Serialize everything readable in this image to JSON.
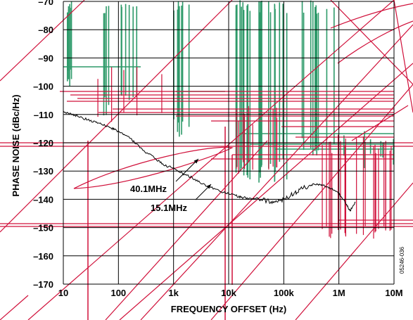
{
  "chart_data": {
    "type": "line",
    "title": "",
    "xlabel": "FREQUENCY OFFSET (Hz)",
    "ylabel": "PHASE NOISE (dBc/Hz)",
    "x_scale": "log",
    "xlim": [
      10,
      10000000
    ],
    "ylim": [
      -170,
      -70
    ],
    "x_ticks": [
      {
        "value": 10,
        "label": "10"
      },
      {
        "value": 100,
        "label": "100"
      },
      {
        "value": 1000,
        "label": "1k"
      },
      {
        "value": 10000,
        "label": "10k"
      },
      {
        "value": 100000,
        "label": "100k"
      },
      {
        "value": 1000000,
        "label": "1M"
      },
      {
        "value": 10000000,
        "label": "10M"
      }
    ],
    "y_ticks": [
      {
        "value": -70,
        "label": "–70"
      },
      {
        "value": -80,
        "label": "–80"
      },
      {
        "value": -90,
        "label": "–90"
      },
      {
        "value": -100,
        "label": "–100"
      },
      {
        "value": -110,
        "label": "–110"
      },
      {
        "value": -120,
        "label": "–120"
      },
      {
        "value": -130,
        "label": "–130"
      },
      {
        "value": -140,
        "label": "–140"
      },
      {
        "value": -150,
        "label": "–150"
      },
      {
        "value": -160,
        "label": "–160"
      },
      {
        "value": -170,
        "label": "–170"
      }
    ],
    "grid": true,
    "series": [
      {
        "name": "40.1MHz",
        "color": "#000000",
        "points": [
          [
            10,
            -109
          ],
          [
            15,
            -110
          ],
          [
            20,
            -111
          ],
          [
            30,
            -112
          ],
          [
            40,
            -113
          ],
          [
            60,
            -114
          ],
          [
            80,
            -115
          ],
          [
            100,
            -116
          ],
          [
            150,
            -118
          ],
          [
            200,
            -120
          ],
          [
            300,
            -123
          ],
          [
            500,
            -126
          ],
          [
            700,
            -128
          ],
          [
            1000,
            -129
          ],
          [
            1500,
            -131
          ],
          [
            2000,
            -132
          ],
          [
            3000,
            -134
          ],
          [
            5000,
            -136
          ],
          [
            8000,
            -137.5
          ],
          [
            10000,
            -138
          ],
          [
            15000,
            -139
          ],
          [
            20000,
            -139.5
          ],
          [
            30000,
            -140
          ],
          [
            50000,
            -140.5
          ],
          [
            70000,
            -141
          ],
          [
            100000,
            -140
          ],
          [
            150000,
            -138
          ],
          [
            200000,
            -136.5
          ],
          [
            300000,
            -135
          ],
          [
            400000,
            -134.5
          ],
          [
            500000,
            -135
          ],
          [
            700000,
            -136
          ],
          [
            1000000,
            -138
          ],
          [
            1300000,
            -141
          ],
          [
            1600000,
            -144
          ],
          [
            2000000,
            -141
          ]
        ]
      }
    ],
    "annotations": [
      {
        "text": "40.1MHz",
        "x": 1000,
        "y": -134
      },
      {
        "text": "15.1MHz",
        "x": 3000,
        "y": -141
      }
    ],
    "figure_id": "05246-036",
    "colors": {
      "grid": "#000000",
      "red_overlay": "#d0103a",
      "green_overlay": "#2e9a6a",
      "trace": "#000000"
    }
  }
}
